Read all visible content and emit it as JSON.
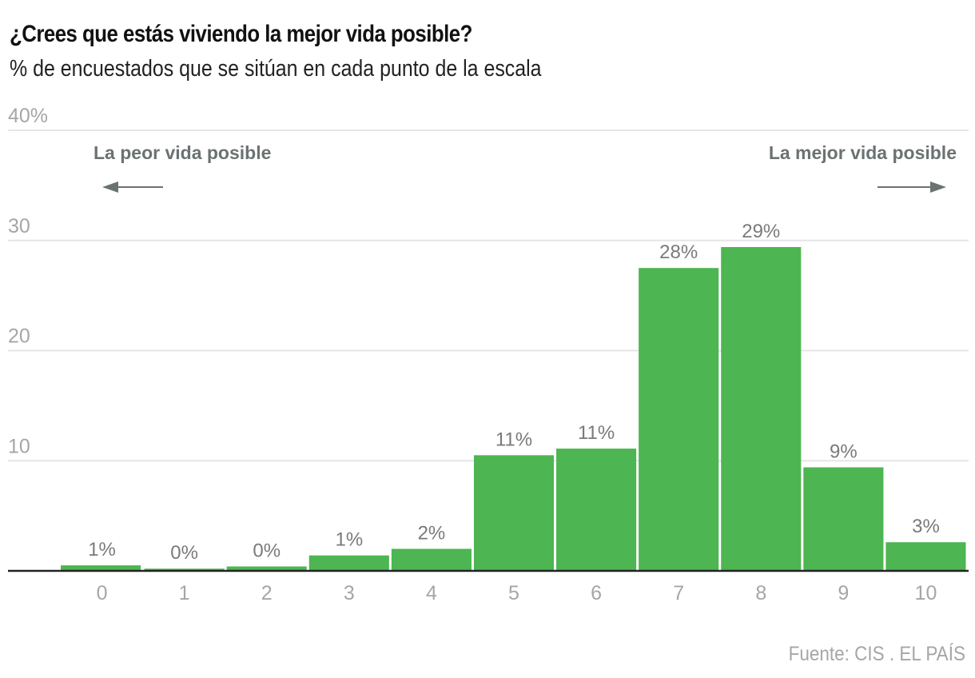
{
  "header": {
    "title": "¿Crees que estás viviendo la mejor vida posible?",
    "subtitle": "% de encuestados que se sitúan en cada punto de la escala"
  },
  "footer": {
    "source": "Fuente: CIS . EL PAÍS"
  },
  "colors": {
    "bar": "#4db551",
    "grid": "#e6e6e6",
    "axis": "#222222",
    "annotation": "#6b7272"
  },
  "chart_data": {
    "type": "bar",
    "title": "¿Crees que estás viviendo la mejor vida posible?",
    "subtitle": "% de encuestados que se sitúan en cada punto de la escala",
    "xlabel": "",
    "ylabel": "",
    "categories": [
      "0",
      "1",
      "2",
      "3",
      "4",
      "5",
      "6",
      "7",
      "8",
      "9",
      "10"
    ],
    "values": [
      0.5,
      0.2,
      0.4,
      1.4,
      2.0,
      10.5,
      11.1,
      27.5,
      29.4,
      9.4,
      2.6
    ],
    "data_labels": [
      "1%",
      "0%",
      "0%",
      "1%",
      "2%",
      "11%",
      "11%",
      "28%",
      "29%",
      "9%",
      "3%"
    ],
    "ylim": [
      0,
      40
    ],
    "yticks": [
      10,
      20,
      30,
      40
    ],
    "ytick_labels": [
      "10",
      "20",
      "30",
      "40%"
    ],
    "grid": true,
    "annotations": {
      "left": "La peor vida posible",
      "right": "La mejor vida posible"
    },
    "source": "Fuente: CIS . EL PAÍS"
  }
}
